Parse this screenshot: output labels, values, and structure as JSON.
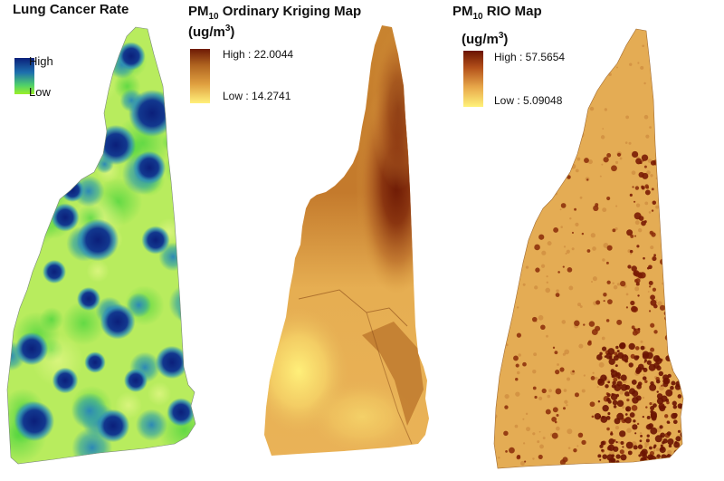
{
  "panels": [
    {
      "title": "Lung Cancer Rate",
      "legend": {
        "high": "High",
        "low": "Low"
      },
      "colors": {
        "high": "#0b1f7a",
        "mid": "#2e8fb5",
        "low": "#7ddc3a",
        "base": "#b8ec5e"
      }
    },
    {
      "title_main": "PM",
      "title_sub": "10",
      "title_rest": " Ordinary Kriging Map",
      "units_main": "(ug/m",
      "units_sup": "3",
      "units_close": ")",
      "legend": {
        "high": "High : 22.0044",
        "low": "Low : 14.2741"
      },
      "colors": {
        "high": "#6e1a05",
        "low": "#fff07a",
        "base": "#d99a3e"
      }
    },
    {
      "title_main": "PM",
      "title_sub": "10",
      "title_rest": " RIO Map",
      "units_main": "(ug/m",
      "units_sup": "3",
      "units_close": ")",
      "legend": {
        "high": "High : 57.5654",
        "low": "Low : 5.09048"
      },
      "colors": {
        "high": "#6b1402",
        "low": "#fff27a",
        "base": "#e8b25a"
      }
    }
  ]
}
